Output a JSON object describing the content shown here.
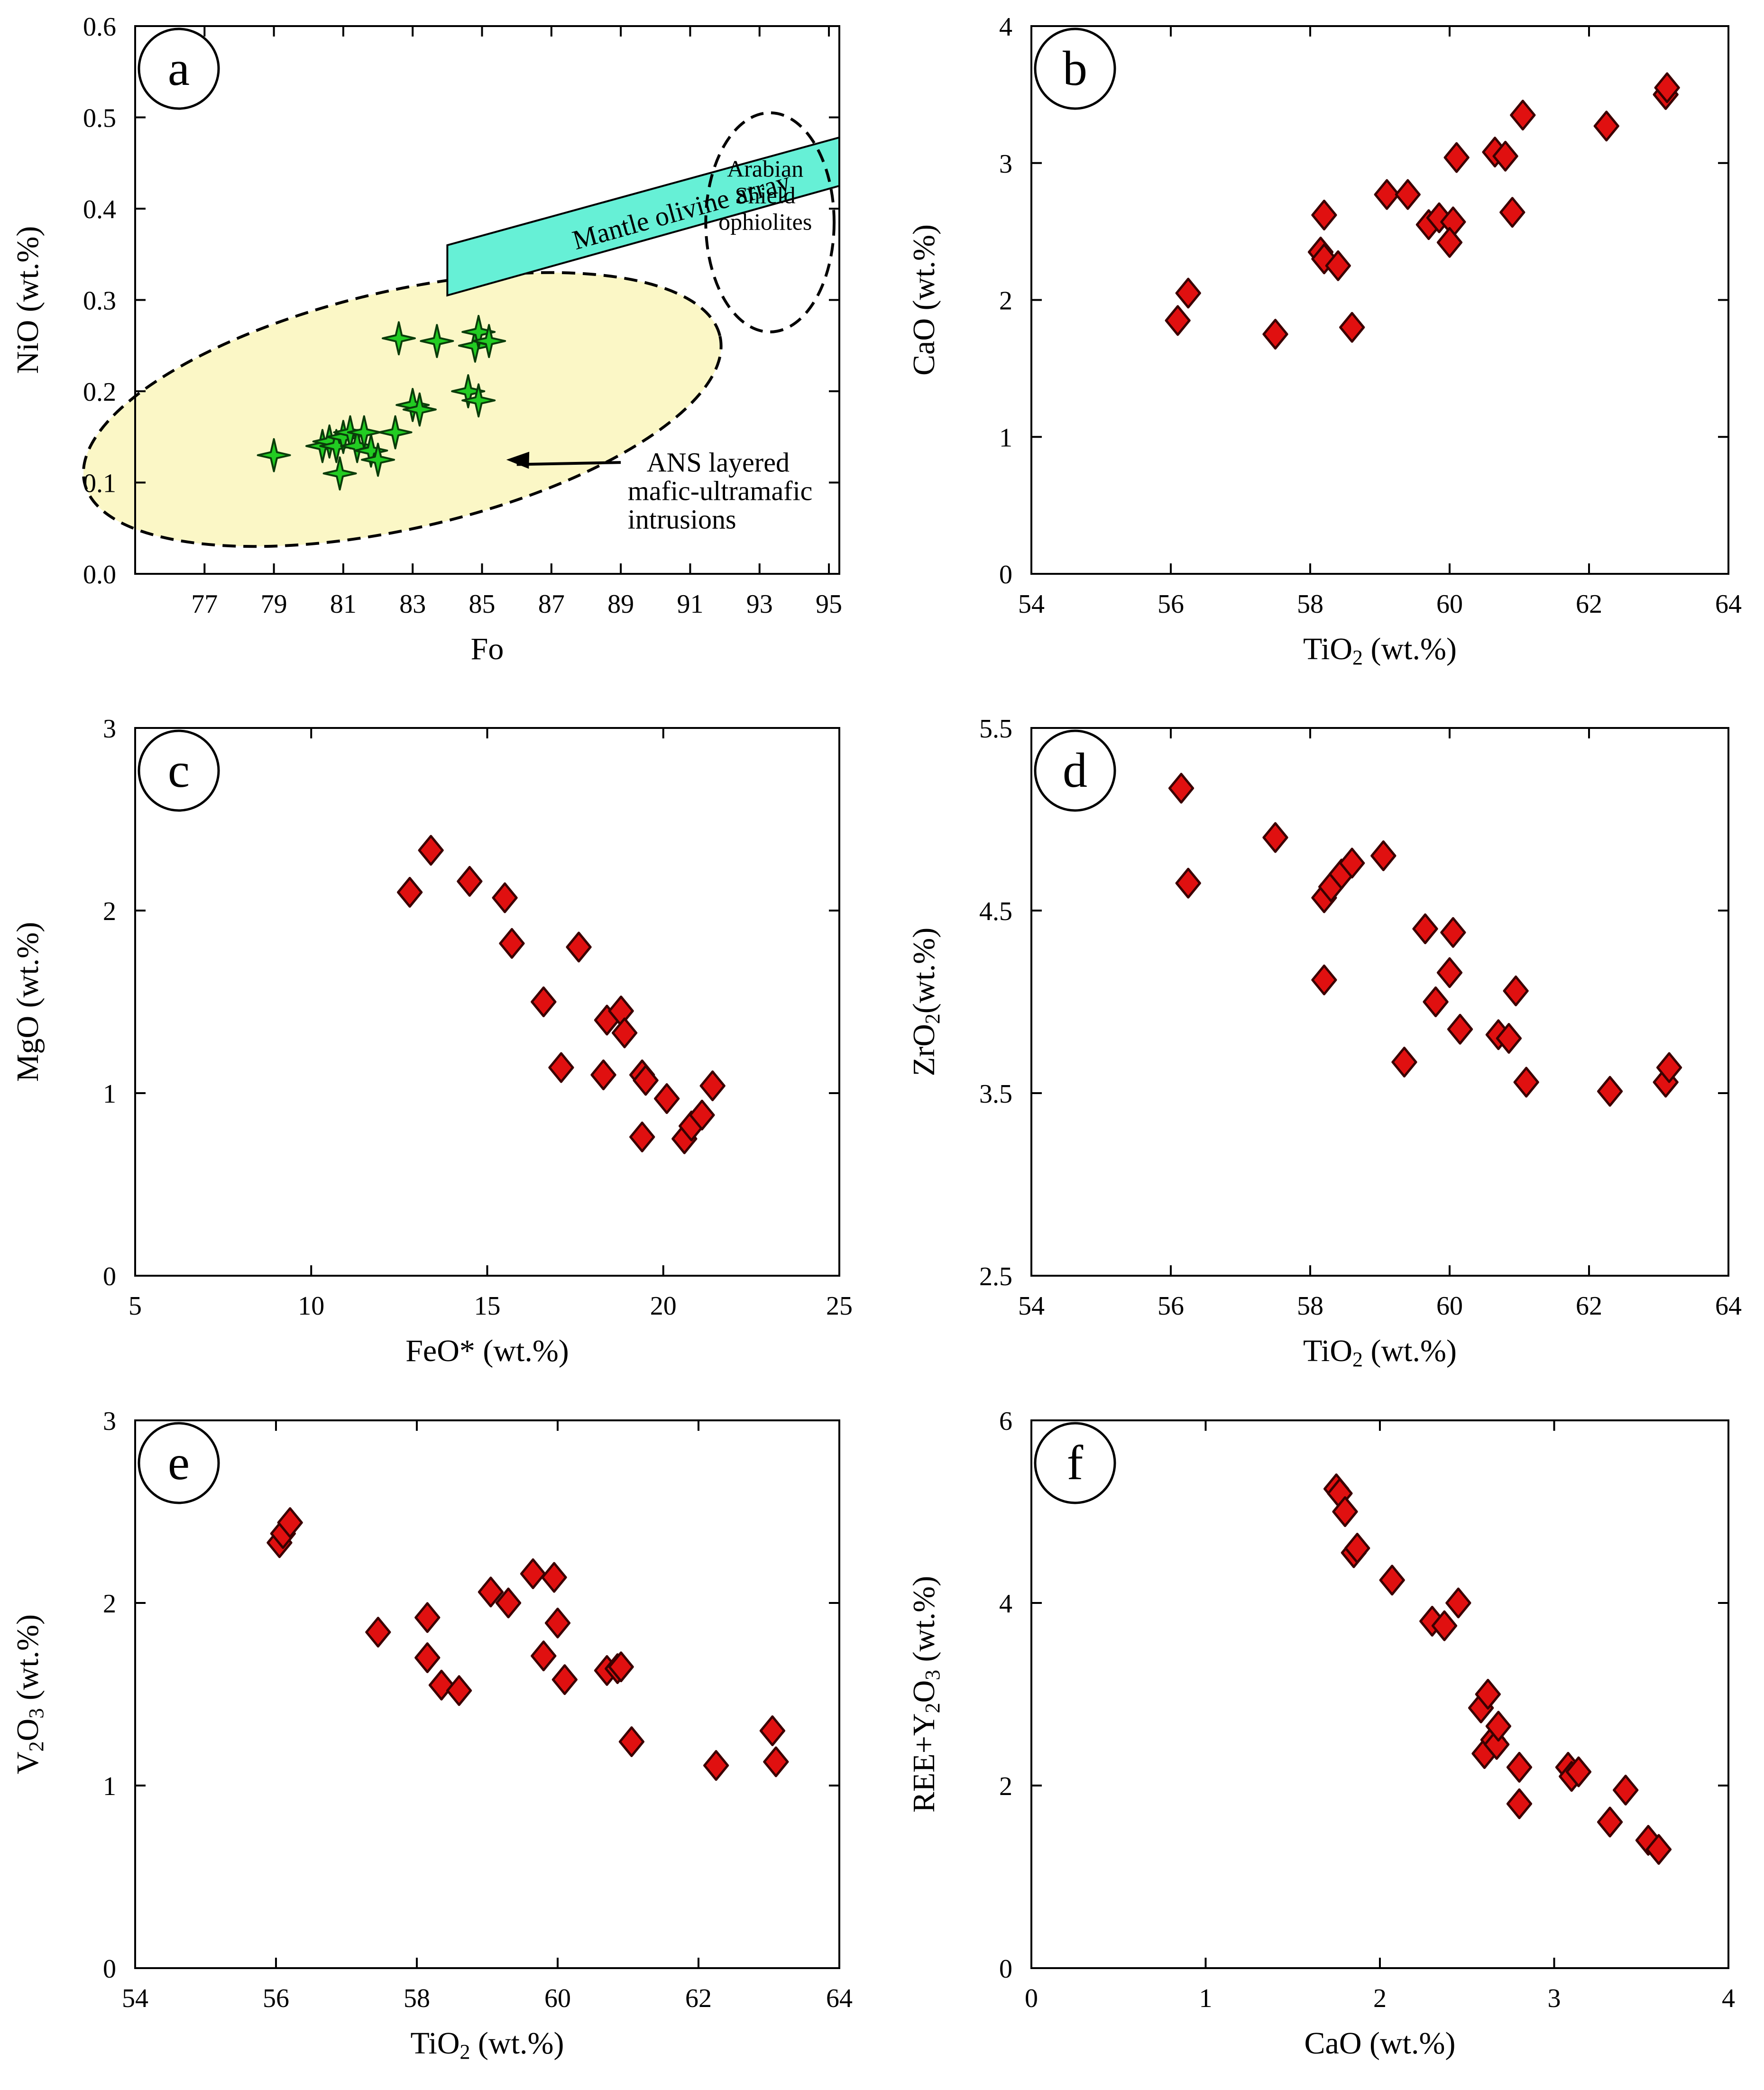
{
  "figure": {
    "marker_colors": {
      "diamond_fill": "#e01010",
      "diamond_stroke": "#3a0000",
      "star_fill": "#22cc22",
      "star_stroke": "#0a3d0a",
      "array_fill": "#66f0d6",
      "ellipse_fill": "#fbf7c6"
    }
  },
  "chart_data": [
    {
      "id": "a",
      "type": "scatter",
      "panel_label": "a",
      "marker": "star",
      "xlabel": "Fo",
      "ylabel": "NiO (wt.%)",
      "xlim": [
        75,
        95.3
      ],
      "ylim": [
        0,
        0.6
      ],
      "xticks": [
        77,
        79,
        81,
        83,
        85,
        87,
        89,
        91,
        93,
        95
      ],
      "yticks": [
        0.0,
        0.1,
        0.2,
        0.3,
        0.4,
        0.5,
        0.6
      ],
      "ytick_labels": [
        "0.0",
        "0.1",
        "0.2",
        "0.3",
        "0.4",
        "0.5",
        "0.6"
      ],
      "x": [
        79.0,
        80.4,
        80.6,
        80.8,
        81.0,
        81.2,
        81.4,
        81.6,
        81.8,
        82.0,
        80.9,
        82.5,
        82.6,
        83.0,
        83.2,
        83.7,
        84.6,
        84.9,
        84.8,
        84.9,
        85.2
      ],
      "y": [
        0.13,
        0.14,
        0.145,
        0.14,
        0.15,
        0.155,
        0.14,
        0.155,
        0.135,
        0.125,
        0.11,
        0.155,
        0.258,
        0.185,
        0.18,
        0.255,
        0.2,
        0.19,
        0.25,
        0.265,
        0.255
      ],
      "regions": {
        "mantle_array": {
          "label": "Mantle olivine array",
          "polygon": [
            [
              84.0,
              0.305
            ],
            [
              95.3,
              0.425
            ],
            [
              95.3,
              0.478
            ],
            [
              84.0,
              0.36
            ]
          ]
        },
        "arabian_ellipse": {
          "lines": [
            "Arabian",
            "Shield",
            "ophiolites"
          ],
          "cx": 93.3,
          "cy": 0.385,
          "rx": 1.85,
          "ry": 0.12
        },
        "ans_ellipse": {
          "lines": [
            "ANS layered",
            "mafic-ultramafic",
            "intrusions"
          ],
          "cx": 82.7,
          "cy": 0.18,
          "rx": 9.4,
          "ry": 0.13,
          "arrow_from": [
            89.0,
            0.122
          ],
          "arrow_to": [
            85.7,
            0.125
          ]
        }
      }
    },
    {
      "id": "b",
      "type": "scatter",
      "panel_label": "b",
      "marker": "diamond",
      "xlabel": "TiO",
      "xlabel_sub": "2",
      "xlabel_tail": " (wt.%)",
      "ylabel": "CaO (wt.%)",
      "xlim": [
        54,
        64
      ],
      "ylim": [
        0,
        4
      ],
      "xticks": [
        54,
        56,
        58,
        60,
        62,
        64
      ],
      "yticks": [
        0,
        1,
        2,
        3,
        4
      ],
      "x": [
        56.1,
        56.25,
        57.5,
        58.15,
        58.2,
        58.4,
        58.6,
        58.2,
        59.1,
        59.4,
        59.7,
        59.85,
        60.05,
        60.1,
        60.0,
        60.65,
        60.8,
        60.9,
        61.05,
        62.25,
        63.1,
        63.12
      ],
      "y": [
        1.85,
        2.05,
        1.75,
        2.35,
        2.3,
        2.25,
        1.8,
        2.62,
        2.77,
        2.77,
        2.55,
        2.6,
        2.57,
        3.04,
        2.42,
        3.08,
        3.05,
        2.64,
        3.35,
        3.27,
        3.5,
        3.55
      ]
    },
    {
      "id": "c",
      "type": "scatter",
      "panel_label": "c",
      "marker": "diamond",
      "xlabel": "FeO* (wt.%)",
      "ylabel": "MgO (wt.%)",
      "xlim": [
        5,
        25
      ],
      "ylim": [
        0,
        3
      ],
      "xticks": [
        5,
        10,
        15,
        20,
        25
      ],
      "yticks": [
        0,
        1,
        2,
        3
      ],
      "x": [
        12.8,
        13.4,
        14.5,
        15.5,
        15.7,
        16.6,
        17.1,
        17.6,
        18.3,
        18.4,
        18.8,
        18.9,
        19.4,
        19.5,
        20.1,
        20.6,
        20.8,
        21.1,
        21.4,
        19.4
      ],
      "y": [
        2.1,
        2.33,
        2.16,
        2.07,
        1.82,
        1.5,
        1.14,
        1.8,
        1.1,
        1.4,
        1.45,
        1.33,
        1.1,
        1.07,
        0.97,
        0.75,
        0.82,
        0.88,
        1.04,
        0.76
      ]
    },
    {
      "id": "d",
      "type": "scatter",
      "panel_label": "d",
      "marker": "diamond",
      "xlabel": "TiO",
      "xlabel_sub": "2",
      "xlabel_tail": " (wt.%)",
      "ylabel": "ZrO",
      "ylabel_sub": "2",
      "ylabel_tail": "(wt.%)",
      "xlim": [
        54,
        64
      ],
      "ylim": [
        2.5,
        5.5
      ],
      "xticks": [
        54,
        56,
        58,
        60,
        62,
        64
      ],
      "yticks": [
        2.5,
        3.5,
        4.5,
        5.5
      ],
      "x": [
        56.15,
        56.25,
        57.5,
        58.2,
        58.3,
        58.45,
        58.6,
        58.2,
        59.05,
        59.35,
        59.65,
        59.8,
        60.0,
        60.05,
        60.15,
        60.7,
        60.85,
        60.95,
        61.1,
        62.3,
        63.1,
        63.15
      ],
      "y": [
        5.17,
        4.65,
        4.9,
        4.57,
        4.63,
        4.7,
        4.76,
        4.12,
        4.8,
        3.67,
        4.4,
        4.0,
        4.16,
        4.38,
        3.85,
        3.82,
        3.8,
        4.06,
        3.56,
        3.51,
        3.56,
        3.64
      ]
    },
    {
      "id": "e",
      "type": "scatter",
      "panel_label": "e",
      "marker": "diamond",
      "xlabel": "TiO",
      "xlabel_sub": "2",
      "xlabel_tail": " (wt.%)",
      "ylabel": "V",
      "ylabel_sub": "2",
      "ylabel_tail": "O",
      "ylabel_sub2": "3",
      "ylabel_tail2": " (wt.%)",
      "xlim": [
        54,
        64
      ],
      "ylim": [
        0,
        3
      ],
      "xticks": [
        54,
        56,
        58,
        60,
        62,
        64
      ],
      "yticks": [
        0,
        1,
        2,
        3
      ],
      "x": [
        56.05,
        56.1,
        56.2,
        57.45,
        58.15,
        58.15,
        58.35,
        58.6,
        59.05,
        59.3,
        59.65,
        59.8,
        59.95,
        60.0,
        60.1,
        60.7,
        60.85,
        60.9,
        61.05,
        62.25,
        63.05,
        63.1
      ],
      "y": [
        2.33,
        2.38,
        2.44,
        1.84,
        1.92,
        1.7,
        1.55,
        1.52,
        2.06,
        2.0,
        2.16,
        1.71,
        2.14,
        1.89,
        1.58,
        1.63,
        1.64,
        1.65,
        1.24,
        1.11,
        1.3,
        1.13
      ]
    },
    {
      "id": "f",
      "type": "scatter",
      "panel_label": "f",
      "marker": "diamond",
      "xlabel": "CaO (wt.%)",
      "ylabel": "REE+Y",
      "ylabel_sub": "2",
      "ylabel_tail": "O",
      "ylabel_sub2": "3",
      "ylabel_tail2": " (wt.%)",
      "xlim": [
        0,
        4
      ],
      "ylim": [
        0,
        6
      ],
      "xticks": [
        0,
        1,
        2,
        3,
        4
      ],
      "yticks": [
        0,
        2,
        4,
        6
      ],
      "x": [
        1.75,
        1.77,
        1.8,
        1.85,
        1.87,
        2.07,
        2.3,
        2.37,
        2.45,
        2.58,
        2.6,
        2.62,
        2.65,
        2.67,
        2.68,
        2.8,
        2.8,
        3.08,
        3.1,
        3.14,
        3.32,
        3.41,
        3.54,
        3.6
      ],
      "y": [
        5.25,
        5.2,
        5.0,
        4.55,
        4.6,
        4.25,
        3.8,
        3.75,
        4.0,
        2.85,
        2.35,
        3.0,
        2.5,
        2.45,
        2.65,
        2.2,
        1.8,
        2.2,
        2.1,
        2.15,
        1.6,
        1.95,
        1.4,
        1.3
      ]
    }
  ]
}
